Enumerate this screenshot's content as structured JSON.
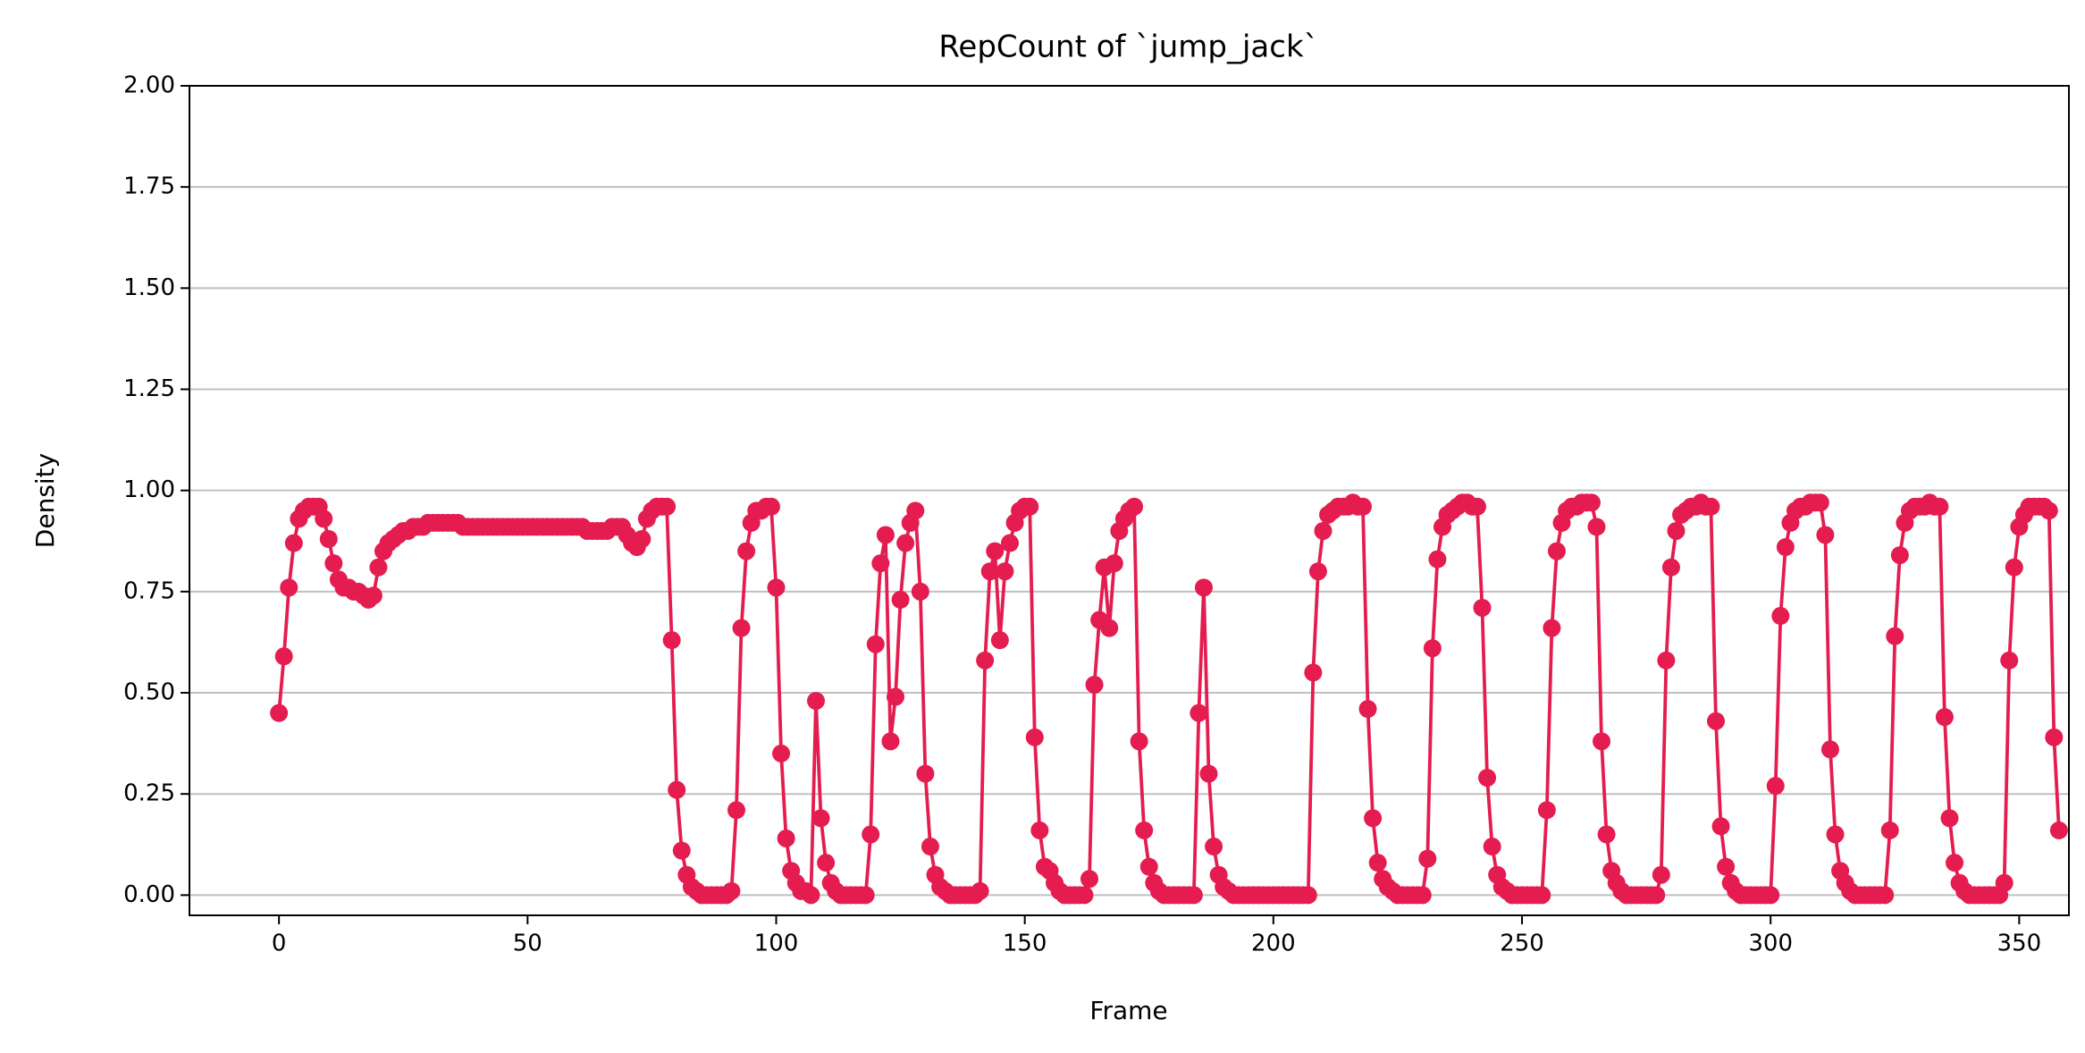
{
  "chart_data": {
    "type": "line",
    "title": "RepCount of `jump_jack`",
    "x_label": "Frame",
    "y_label": "Density",
    "xlim": [
      -18,
      360
    ],
    "xticks": [
      0,
      50,
      100,
      150,
      200,
      250,
      300,
      350
    ],
    "ylim": [
      -0.05,
      2.0
    ],
    "yticks": [
      {
        "value": 0,
        "label": "0.00"
      },
      {
        "value": 0.25,
        "label": "0.25"
      },
      {
        "value": 0.5,
        "label": "0.50"
      },
      {
        "value": 0.75,
        "label": "0.75"
      },
      {
        "value": 1.0,
        "label": "1.00"
      },
      {
        "value": 1.25,
        "label": "1.25"
      },
      {
        "value": 1.5,
        "label": "1.50"
      },
      {
        "value": 1.75,
        "label": "1.75"
      },
      {
        "value": 2.0,
        "label": "2.00"
      }
    ],
    "grid": "y",
    "x": [
      0,
      1,
      2,
      3,
      4,
      5,
      6,
      7,
      8,
      9,
      10,
      11,
      12,
      13,
      14,
      15,
      16,
      17,
      18,
      19,
      20,
      21,
      22,
      23,
      24,
      25,
      26,
      27,
      28,
      29,
      30,
      31,
      32,
      33,
      34,
      35,
      36,
      37,
      38,
      39,
      40,
      41,
      42,
      43,
      44,
      45,
      46,
      47,
      48,
      49,
      50,
      51,
      52,
      53,
      54,
      55,
      56,
      57,
      58,
      59,
      60,
      61,
      62,
      63,
      64,
      65,
      66,
      67,
      68,
      69,
      70,
      71,
      72,
      73,
      74,
      75,
      76,
      77,
      78,
      79,
      80,
      81,
      82,
      83,
      84,
      85,
      86,
      87,
      88,
      89,
      90,
      91,
      92,
      93,
      94,
      95,
      96,
      97,
      98,
      99,
      100,
      101,
      102,
      103,
      104,
      105,
      106,
      107,
      108,
      109,
      110,
      111,
      112,
      113,
      114,
      115,
      116,
      117,
      118,
      119,
      120,
      121,
      122,
      123,
      124,
      125,
      126,
      127,
      128,
      129,
      130,
      131,
      132,
      133,
      134,
      135,
      136,
      137,
      138,
      139,
      140,
      141,
      142,
      143,
      144,
      145,
      146,
      147,
      148,
      149,
      150,
      151,
      152,
      153,
      154,
      155,
      156,
      157,
      158,
      159,
      160,
      161,
      162,
      163,
      164,
      165,
      166,
      167,
      168,
      169,
      170,
      171,
      172,
      173,
      174,
      175,
      176,
      177,
      178,
      179,
      180,
      181,
      182,
      183,
      184,
      185,
      186,
      187,
      188,
      189,
      190,
      191,
      192,
      193,
      194,
      195,
      196,
      197,
      198,
      199,
      200,
      201,
      202,
      203,
      204,
      205,
      206,
      207,
      208,
      209,
      210,
      211,
      212,
      213,
      214,
      215,
      216,
      217,
      218,
      219,
      220,
      221,
      222,
      223,
      224,
      225,
      226,
      227,
      228,
      229,
      230,
      231,
      232,
      233,
      234,
      235,
      236,
      237,
      238,
      239,
      240,
      241,
      242,
      243,
      244,
      245,
      246,
      247,
      248,
      249,
      250,
      251,
      252,
      253,
      254,
      255,
      256,
      257,
      258,
      259,
      260,
      261,
      262,
      263,
      264,
      265,
      266,
      267,
      268,
      269,
      270,
      271,
      272,
      273,
      274,
      275,
      276,
      277,
      278,
      279,
      280,
      281,
      282,
      283,
      284,
      285,
      286,
      287,
      288,
      289,
      290,
      291,
      292,
      293,
      294,
      295,
      296,
      297,
      298,
      299,
      300,
      301,
      302,
      303,
      304,
      305,
      306,
      307,
      308,
      309,
      310,
      311,
      312,
      313,
      314,
      315,
      316,
      317,
      318,
      319,
      320,
      321,
      322,
      323,
      324,
      325,
      326,
      327,
      328,
      329,
      330,
      331,
      332,
      333,
      334,
      335,
      336,
      337,
      338,
      339,
      340,
      341,
      342,
      343,
      344,
      345,
      346,
      347,
      348,
      349,
      350,
      351,
      352,
      353,
      354,
      355,
      356,
      357,
      358
    ],
    "series": [
      {
        "color": "#e41c4f",
        "values": [
          0.45,
          0.59,
          0.76,
          0.87,
          0.93,
          0.95,
          0.96,
          0.96,
          0.96,
          0.93,
          0.88,
          0.82,
          0.78,
          0.76,
          0.76,
          0.75,
          0.75,
          0.74,
          0.73,
          0.74,
          0.81,
          0.85,
          0.87,
          0.88,
          0.89,
          0.9,
          0.9,
          0.91,
          0.91,
          0.91,
          0.92,
          0.92,
          0.92,
          0.92,
          0.92,
          0.92,
          0.92,
          0.91,
          0.91,
          0.91,
          0.91,
          0.91,
          0.91,
          0.91,
          0.91,
          0.91,
          0.91,
          0.91,
          0.91,
          0.91,
          0.91,
          0.91,
          0.91,
          0.91,
          0.91,
          0.91,
          0.91,
          0.91,
          0.91,
          0.91,
          0.91,
          0.91,
          0.9,
          0.9,
          0.9,
          0.9,
          0.9,
          0.91,
          0.91,
          0.91,
          0.89,
          0.87,
          0.86,
          0.88,
          0.93,
          0.95,
          0.96,
          0.96,
          0.96,
          0.63,
          0.26,
          0.11,
          0.05,
          0.02,
          0.01,
          0,
          0,
          0,
          0,
          0,
          0,
          0.01,
          0.21,
          0.66,
          0.85,
          0.92,
          0.95,
          0.95,
          0.96,
          0.96,
          0.76,
          0.35,
          0.14,
          0.06,
          0.03,
          0.01,
          0.01,
          0,
          0.48,
          0.19,
          0.08,
          0.03,
          0.01,
          0,
          0,
          0,
          0,
          0,
          0,
          0.15,
          0.62,
          0.82,
          0.89,
          0.38,
          0.49,
          0.73,
          0.87,
          0.92,
          0.95,
          0.75,
          0.3,
          0.12,
          0.05,
          0.02,
          0.01,
          0,
          0,
          0,
          0,
          0,
          0,
          0.01,
          0.58,
          0.8,
          0.85,
          0.63,
          0.8,
          0.87,
          0.92,
          0.95,
          0.96,
          0.96,
          0.39,
          0.16,
          0.07,
          0.06,
          0.03,
          0.01,
          0,
          0,
          0,
          0,
          0,
          0.04,
          0.52,
          0.68,
          0.81,
          0.66,
          0.82,
          0.9,
          0.93,
          0.95,
          0.96,
          0.38,
          0.16,
          0.07,
          0.03,
          0.01,
          0,
          0,
          0,
          0,
          0,
          0,
          0,
          0.45,
          0.76,
          0.3,
          0.12,
          0.05,
          0.02,
          0.01,
          0,
          0,
          0,
          0,
          0,
          0,
          0,
          0,
          0,
          0,
          0,
          0,
          0,
          0,
          0,
          0,
          0.55,
          0.8,
          0.9,
          0.94,
          0.95,
          0.96,
          0.96,
          0.96,
          0.97,
          0.96,
          0.96,
          0.46,
          0.19,
          0.08,
          0.04,
          0.02,
          0.01,
          0,
          0,
          0,
          0,
          0,
          0,
          0.09,
          0.61,
          0.83,
          0.91,
          0.94,
          0.95,
          0.96,
          0.97,
          0.97,
          0.96,
          0.96,
          0.71,
          0.29,
          0.12,
          0.05,
          0.02,
          0.01,
          0,
          0,
          0,
          0,
          0,
          0,
          0,
          0.21,
          0.66,
          0.85,
          0.92,
          0.95,
          0.96,
          0.96,
          0.97,
          0.97,
          0.97,
          0.91,
          0.38,
          0.15,
          0.06,
          0.03,
          0.01,
          0,
          0,
          0,
          0,
          0,
          0,
          0,
          0.05,
          0.58,
          0.81,
          0.9,
          0.94,
          0.95,
          0.96,
          0.96,
          0.97,
          0.96,
          0.96,
          0.43,
          0.17,
          0.07,
          0.03,
          0.01,
          0,
          0,
          0,
          0,
          0,
          0,
          0,
          0.27,
          0.69,
          0.86,
          0.92,
          0.95,
          0.96,
          0.96,
          0.97,
          0.97,
          0.97,
          0.89,
          0.36,
          0.15,
          0.06,
          0.03,
          0.01,
          0,
          0,
          0,
          0,
          0,
          0,
          0,
          0.16,
          0.64,
          0.84,
          0.92,
          0.95,
          0.96,
          0.96,
          0.96,
          0.97,
          0.96,
          0.96,
          0.44,
          0.19,
          0.08,
          0.03,
          0.01,
          0,
          0,
          0,
          0,
          0,
          0,
          0,
          0.03,
          0.58,
          0.81,
          0.91,
          0.94,
          0.96,
          0.96,
          0.96,
          0.96,
          0.95,
          0.39,
          0.16
        ]
      }
    ]
  }
}
